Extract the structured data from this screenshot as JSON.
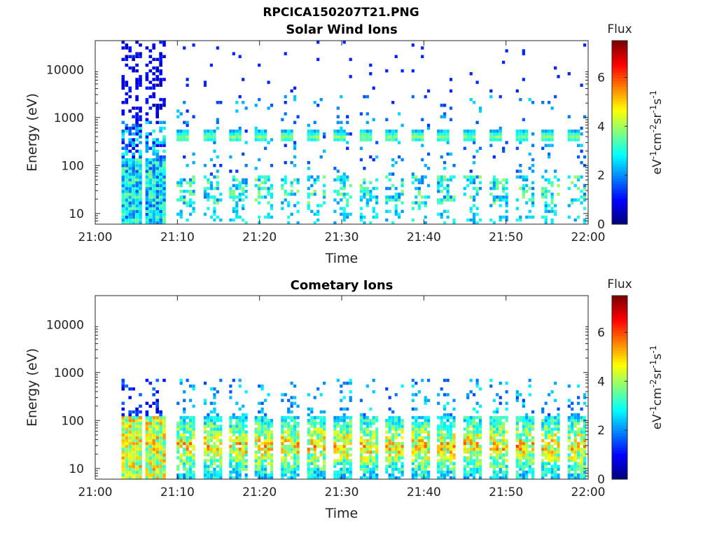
{
  "figure": {
    "title": "RPCICA150207T21.PNG"
  },
  "colormap": {
    "name": "jet",
    "stops": [
      "#00008f",
      "#0000ff",
      "#00ffff",
      "#ffff00",
      "#ff0000",
      "#800000"
    ]
  },
  "chart_data": [
    {
      "type": "heatmap",
      "title": "Solar Wind Ions",
      "xlabel": "Time",
      "ylabel": "Energy (eV)",
      "xlim": [
        "21:00",
        "22:00"
      ],
      "xticks": [
        "21:00",
        "21:10",
        "21:20",
        "21:30",
        "21:40",
        "21:50",
        "22:00"
      ],
      "ylim": [
        6,
        40000
      ],
      "yscale": "log",
      "yticks": [
        {
          "value": 10,
          "label": "10"
        },
        {
          "value": 100,
          "label": "100"
        },
        {
          "value": 1000,
          "label": "1000"
        },
        {
          "value": 10000,
          "label": "10000"
        }
      ],
      "colorbar": {
        "title": "Flux",
        "unit_label": "eV-1cm-2sr-1s-1",
        "range": [
          0,
          7.5
        ],
        "ticks": [
          "0",
          "2",
          "4",
          "6"
        ]
      },
      "sweep_start_minutes": [
        10.2,
        13.5,
        16.6,
        19.7,
        22.9,
        26.1,
        29.3,
        32.5,
        35.6,
        38.8,
        41.9,
        45.1,
        48.3,
        51.5,
        54.6,
        57.8
      ],
      "early_block_minutes": [
        [
          3.2,
          5.6
        ],
        [
          6.1,
          8.6
        ]
      ],
      "typical_peak_energy_eV": 400,
      "typical_peak_flux": 3.8,
      "low_energy_band_eV": [
        15,
        60
      ],
      "low_energy_band_flux": 3.5,
      "sparse_high_energy_flux": 1.2
    },
    {
      "type": "heatmap",
      "title": "Cometary Ions",
      "xlabel": "Time",
      "ylabel": "Energy (eV)",
      "xlim": [
        "21:00",
        "22:00"
      ],
      "xticks": [
        "21:00",
        "21:10",
        "21:20",
        "21:30",
        "21:40",
        "21:50",
        "22:00"
      ],
      "ylim": [
        6,
        40000
      ],
      "yscale": "log",
      "yticks": [
        {
          "value": 10,
          "label": "10"
        },
        {
          "value": 100,
          "label": "100"
        },
        {
          "value": 1000,
          "label": "1000"
        },
        {
          "value": 10000,
          "label": "10000"
        }
      ],
      "colorbar": {
        "title": "Flux",
        "unit_label": "eV-1cm-2sr-1s-1",
        "range": [
          0,
          7.5
        ],
        "ticks": [
          "0",
          "2",
          "4",
          "6"
        ]
      },
      "sweep_start_minutes": [
        10.2,
        13.5,
        16.6,
        19.7,
        22.9,
        26.1,
        29.3,
        32.5,
        35.6,
        38.8,
        41.9,
        45.1,
        48.3,
        51.5,
        54.6,
        57.8
      ],
      "early_block_minutes": [
        [
          3.2,
          5.6
        ],
        [
          6.1,
          8.6
        ]
      ],
      "typical_peak_energy_eV": 30,
      "typical_peak_flux": 5.6,
      "band_energy_eV": [
        6,
        120
      ],
      "sparse_high_energy_flux": 2.2
    }
  ]
}
